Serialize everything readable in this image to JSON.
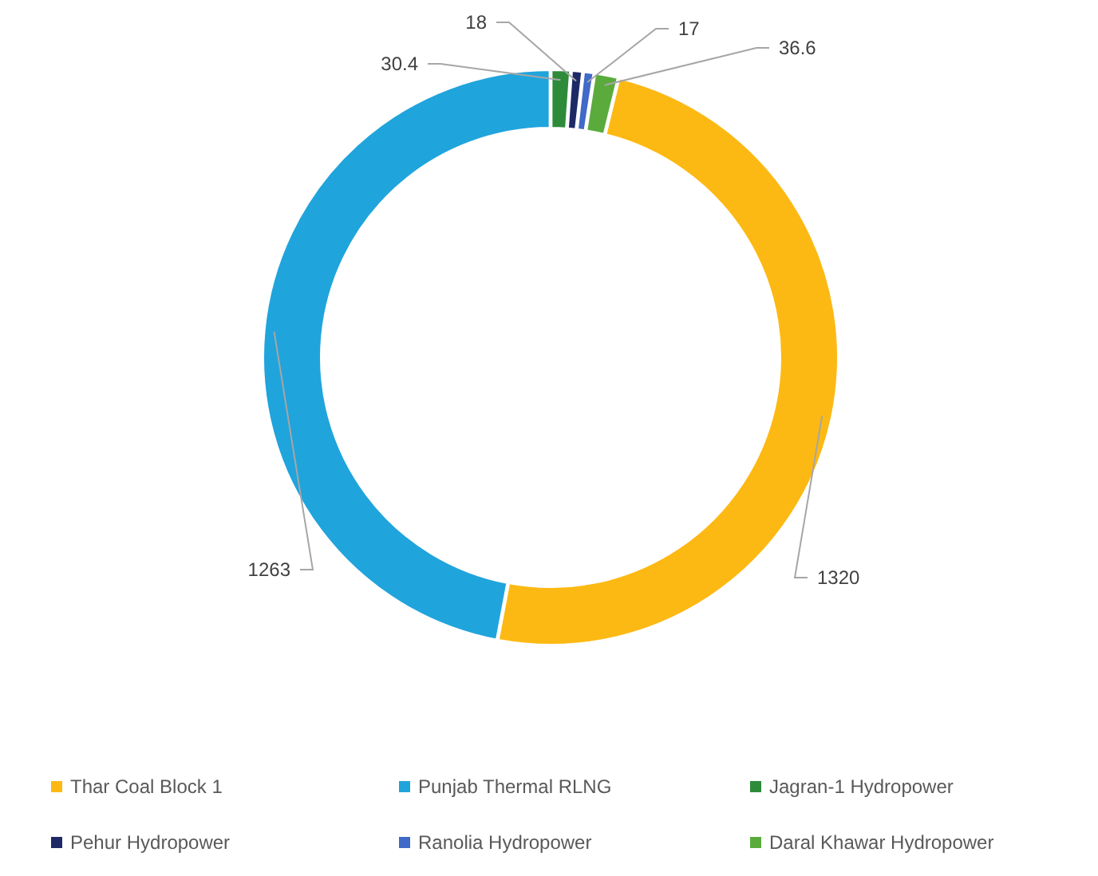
{
  "chart_data": {
    "type": "donut",
    "categories": [
      "Thar Coal Block 1",
      "Punjab Thermal RLNG",
      "Jagran-1 Hydropower",
      "Pehur Hydropower",
      "Ranolia Hydropower",
      "Daral Khawar Hydropower"
    ],
    "values": [
      1320,
      1263,
      30.4,
      18,
      17,
      36.6
    ],
    "colors": [
      "#fdb913",
      "#20a4dc",
      "#2e8b3a",
      "#1e2a66",
      "#4169c8",
      "#5aab3c"
    ],
    "data_labels": true,
    "legend": "bottom"
  }
}
